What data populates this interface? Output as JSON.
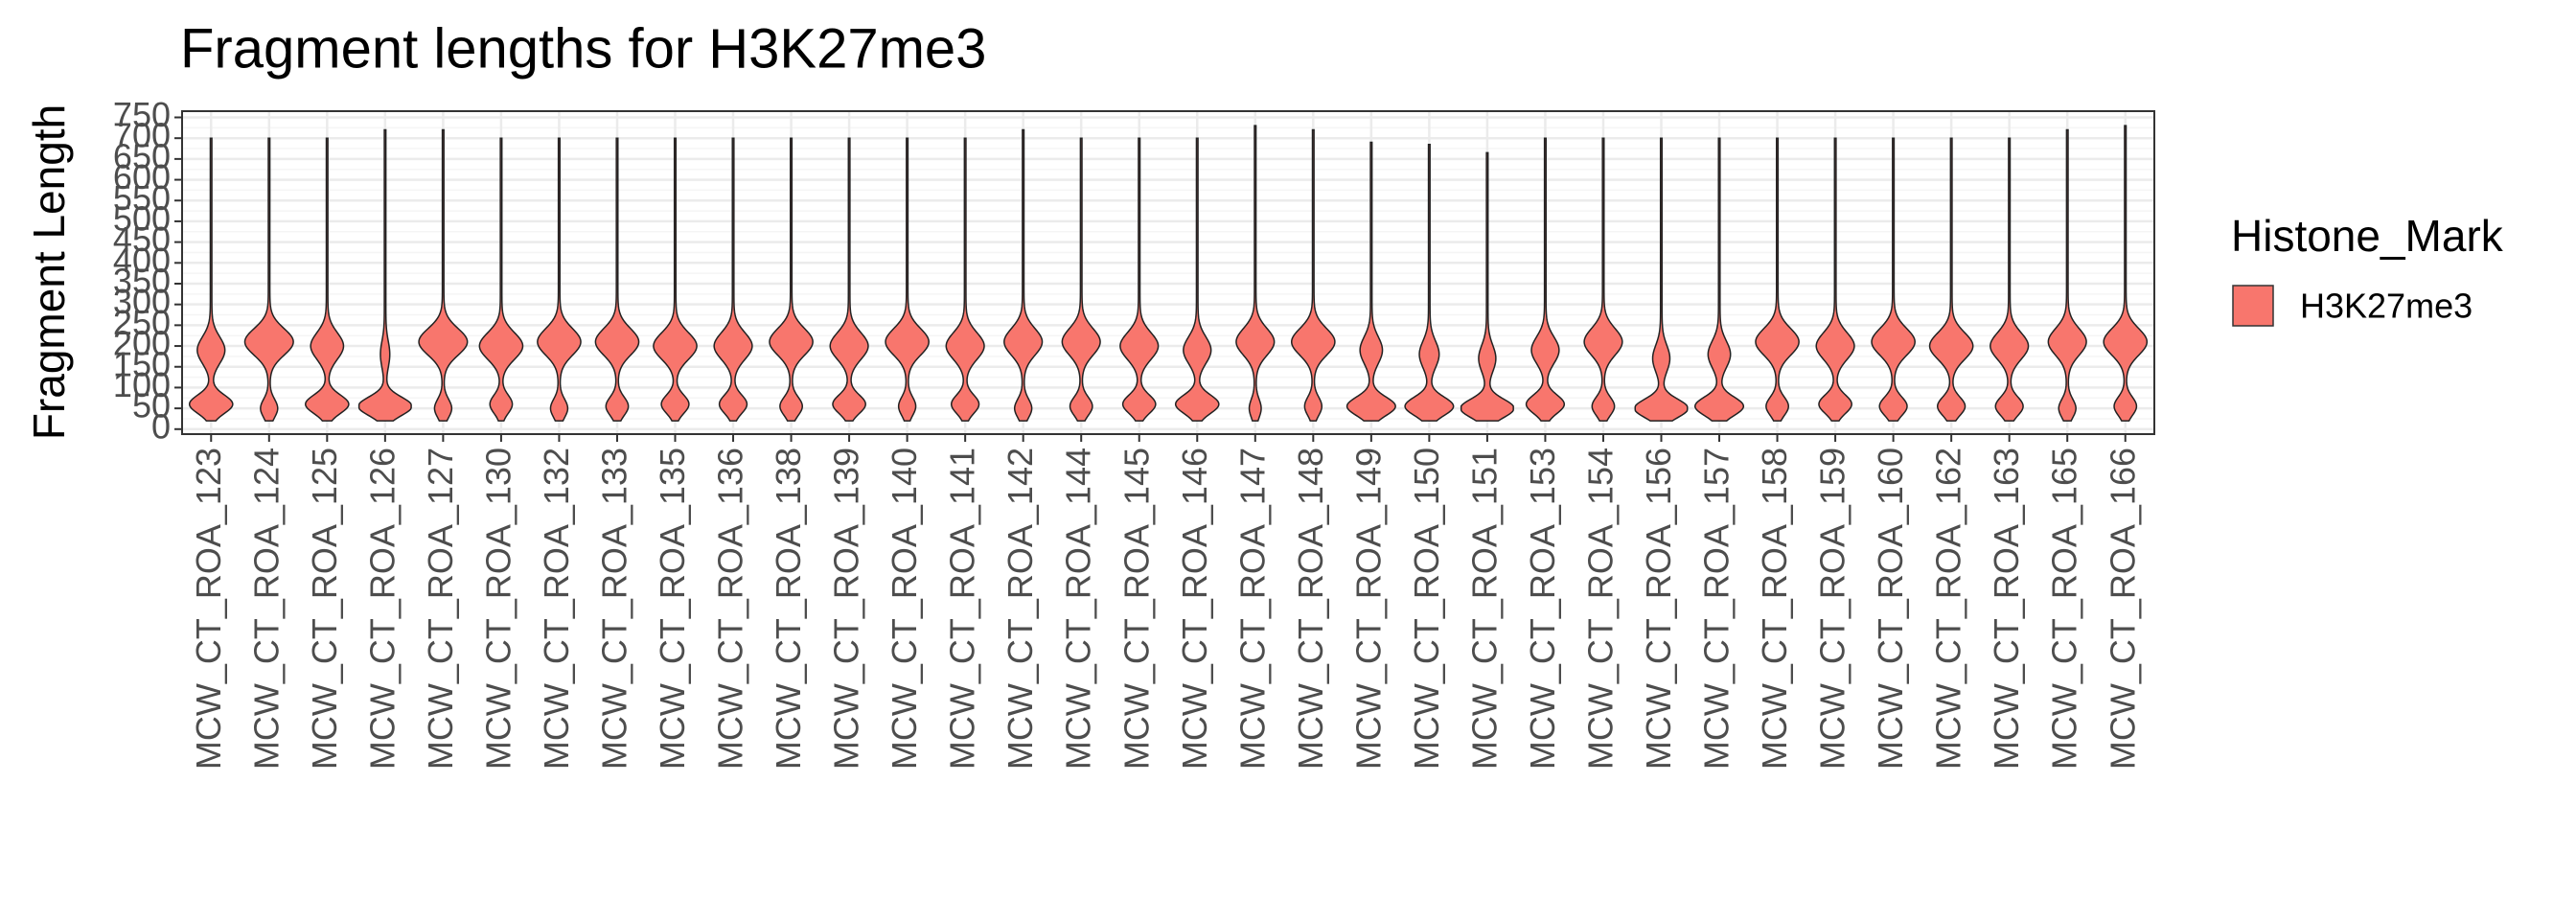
{
  "chart_data": {
    "type": "violin",
    "title": "Fragment lengths for H3K27me3",
    "ylabel": "Fragment Length",
    "categories": [
      "MCW_CT_ROA_123",
      "MCW_CT_ROA_124",
      "MCW_CT_ROA_125",
      "MCW_CT_ROA_126",
      "MCW_CT_ROA_127",
      "MCW_CT_ROA_130",
      "MCW_CT_ROA_132",
      "MCW_CT_ROA_133",
      "MCW_CT_ROA_135",
      "MCW_CT_ROA_136",
      "MCW_CT_ROA_138",
      "MCW_CT_ROA_139",
      "MCW_CT_ROA_140",
      "MCW_CT_ROA_141",
      "MCW_CT_ROA_142",
      "MCW_CT_ROA_144",
      "MCW_CT_ROA_145",
      "MCW_CT_ROA_146",
      "MCW_CT_ROA_147",
      "MCW_CT_ROA_148",
      "MCW_CT_ROA_149",
      "MCW_CT_ROA_150",
      "MCW_CT_ROA_151",
      "MCW_CT_ROA_153",
      "MCW_CT_ROA_154",
      "MCW_CT_ROA_156",
      "MCW_CT_ROA_157",
      "MCW_CT_ROA_158",
      "MCW_CT_ROA_159",
      "MCW_CT_ROA_160",
      "MCW_CT_ROA_162",
      "MCW_CT_ROA_163",
      "MCW_CT_ROA_165",
      "MCW_CT_ROA_166"
    ],
    "legend_title": "Histone_Mark",
    "legend": "right",
    "series": [
      {
        "name": "H3K27me3",
        "color": "#F8766D",
        "min": [
          20,
          20,
          20,
          20,
          20,
          20,
          20,
          20,
          20,
          20,
          20,
          20,
          20,
          20,
          20,
          20,
          20,
          20,
          20,
          20,
          20,
          20,
          20,
          20,
          20,
          20,
          20,
          20,
          20,
          20,
          20,
          20,
          20,
          20
        ],
        "max": [
          700,
          700,
          700,
          720,
          720,
          700,
          700,
          700,
          700,
          700,
          700,
          700,
          700,
          700,
          720,
          700,
          700,
          700,
          730,
          720,
          690,
          685,
          665,
          700,
          700,
          700,
          700,
          700,
          700,
          700,
          700,
          700,
          720,
          730
        ],
        "low_peak": [
          60,
          50,
          60,
          55,
          50,
          60,
          50,
          55,
          60,
          60,
          55,
          60,
          55,
          60,
          50,
          55,
          60,
          60,
          50,
          55,
          55,
          55,
          50,
          60,
          55,
          50,
          55,
          55,
          60,
          55,
          55,
          55,
          50,
          55
        ],
        "low_density": [
          0.8,
          0.3,
          0.8,
          1.0,
          0.3,
          0.4,
          0.3,
          0.4,
          0.5,
          0.5,
          0.4,
          0.6,
          0.3,
          0.5,
          0.3,
          0.4,
          0.6,
          0.8,
          0.2,
          0.3,
          0.9,
          0.9,
          1.0,
          0.7,
          0.4,
          1.0,
          0.9,
          0.4,
          0.6,
          0.5,
          0.5,
          0.5,
          0.3,
          0.4
        ],
        "high_peak": [
          190,
          210,
          200,
          180,
          210,
          200,
          210,
          210,
          200,
          200,
          210,
          200,
          210,
          200,
          210,
          210,
          200,
          190,
          210,
          210,
          190,
          180,
          170,
          190,
          210,
          170,
          180,
          210,
          200,
          210,
          200,
          200,
          210,
          210
        ],
        "high_density": [
          0.5,
          0.9,
          0.6,
          0.15,
          0.9,
          0.8,
          0.8,
          0.8,
          0.8,
          0.7,
          0.8,
          0.7,
          0.8,
          0.7,
          0.7,
          0.7,
          0.7,
          0.5,
          0.7,
          0.8,
          0.4,
          0.35,
          0.3,
          0.5,
          0.7,
          0.3,
          0.4,
          0.8,
          0.7,
          0.8,
          0.8,
          0.7,
          0.7,
          0.8
        ]
      }
    ],
    "ylim": [
      -12,
      765
    ],
    "yticks": [
      0,
      50,
      100,
      150,
      200,
      250,
      300,
      350,
      400,
      450,
      500,
      550,
      600,
      650,
      700,
      750
    ],
    "grid": true
  }
}
